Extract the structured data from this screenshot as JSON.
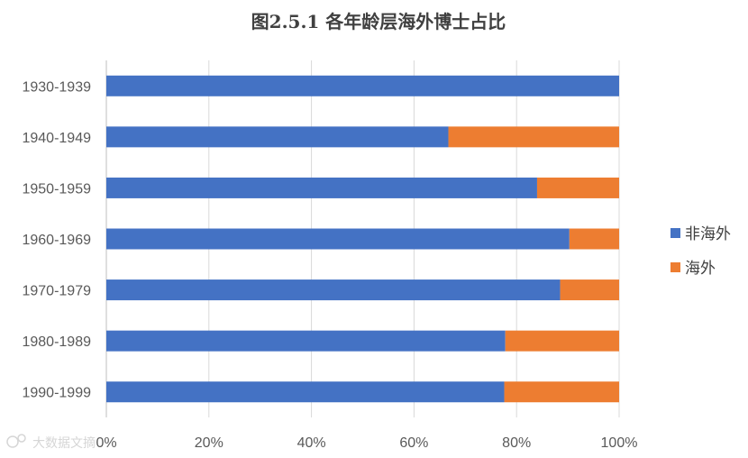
{
  "chart_data": {
    "type": "bar",
    "orientation": "horizontal",
    "stacked": true,
    "title": "图2.5.1 各年龄层海外博士占比",
    "categories": [
      "1930-1939",
      "1940-1949",
      "1950-1959",
      "1960-1969",
      "1970-1979",
      "1980-1989",
      "1990-1999"
    ],
    "series": [
      {
        "name": "非海外",
        "color": "#4472C4",
        "values": [
          100,
          66.7,
          84,
          90.3,
          88.5,
          77.8,
          77.6
        ]
      },
      {
        "name": "海外",
        "color": "#ED7D31",
        "values": [
          0,
          33.3,
          16,
          9.7,
          11.5,
          22.2,
          22.4
        ]
      }
    ],
    "xlim": [
      0,
      100
    ],
    "x_ticks": [
      "0%",
      "20%",
      "40%",
      "60%",
      "80%",
      "100%"
    ],
    "grid": true,
    "legend_position": "right"
  },
  "watermark": "大数据文摘"
}
